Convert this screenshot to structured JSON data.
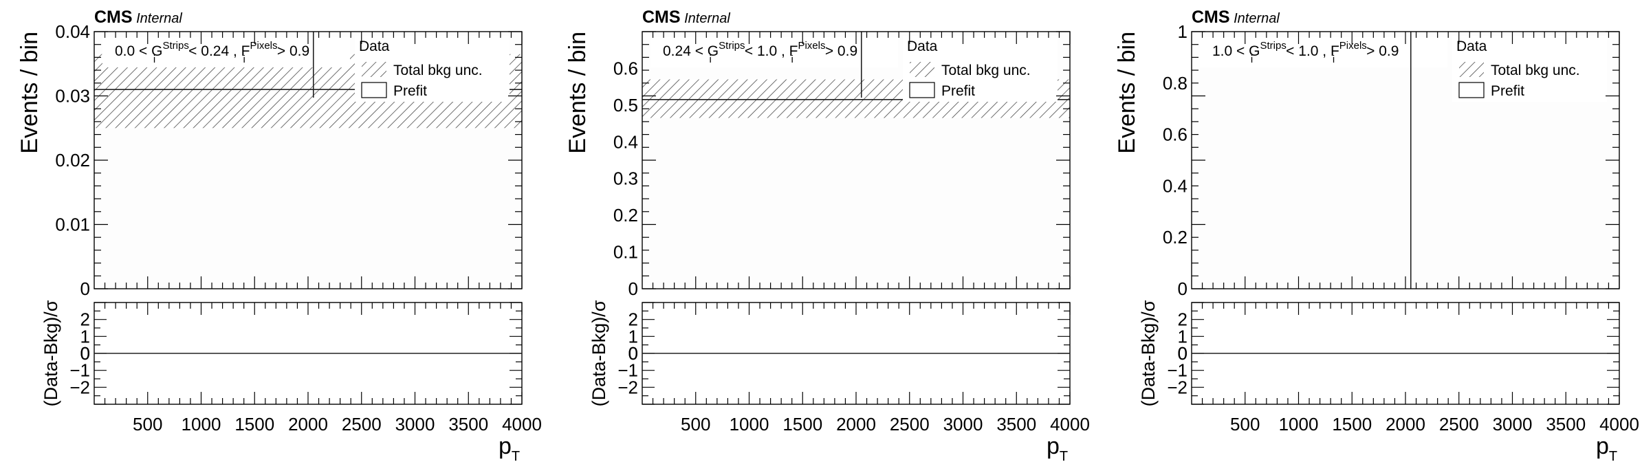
{
  "chart_data": [
    {
      "type": "bar",
      "panel": "left",
      "experiment_label": "CMS",
      "status_label": "Internal",
      "region": {
        "lower": "0.0",
        "op1": "< G",
        "g_sub": "i",
        "g_sup": "Strips",
        "upper_text": "< 0.24 , F",
        "f_sub": "i",
        "f_sup": "Pixels",
        "tail": "> 0.9"
      },
      "ylabel": "Events / bin",
      "xlabel_main": "p",
      "xlabel_sub": "T",
      "ratio_ylabel": "(Data-Bkg)/σ",
      "xlim": [
        0,
        4000
      ],
      "ylim": [
        0,
        0.04
      ],
      "yticks": [
        "0",
        "0.01",
        "0.02",
        "0.03",
        "0.04"
      ],
      "xticks": [
        "500",
        "1000",
        "1500",
        "2000",
        "2500",
        "3000",
        "3500",
        "4000"
      ],
      "ratio_ylim": [
        -3,
        3
      ],
      "ratio_yticks": [
        "−2",
        "−1",
        "0",
        "1",
        "2"
      ],
      "bins": [
        [
          0,
          4000
        ]
      ],
      "prefit": [
        0.031
      ],
      "bkg_unc_low": [
        0.025
      ],
      "bkg_unc_high": [
        0.0365
      ],
      "data_marker_x": 2050,
      "legend": {
        "data": "Data",
        "unc": "Total bkg unc.",
        "prefit": "Prefit"
      }
    },
    {
      "type": "bar",
      "panel": "middle",
      "experiment_label": "CMS",
      "status_label": "Internal",
      "region": {
        "lower": "0.24",
        "op1": "< G",
        "g_sub": "i",
        "g_sup": "Strips",
        "upper_text": "< 1.0 , F",
        "f_sub": "i",
        "f_sup": "Pixels",
        "tail": "> 0.9"
      },
      "ylabel": "Events / bin",
      "xlabel_main": "p",
      "xlabel_sub": "T",
      "ratio_ylabel": "(Data-Bkg)/σ",
      "xlim": [
        0,
        4000
      ],
      "ylim": [
        0,
        0.7
      ],
      "yticks": [
        "0",
        "0.1",
        "0.2",
        "0.3",
        "0.4",
        "0.5",
        "0.6"
      ],
      "xticks": [
        "500",
        "1000",
        "1500",
        "2000",
        "2500",
        "3000",
        "3500",
        "4000"
      ],
      "ratio_ylim": [
        -3,
        3
      ],
      "ratio_yticks": [
        "−2",
        "−1",
        "0",
        "1",
        "2"
      ],
      "bins": [
        [
          0,
          4000
        ]
      ],
      "prefit": [
        0.515
      ],
      "bkg_unc_low": [
        0.465
      ],
      "bkg_unc_high": [
        0.57
      ],
      "data_marker_x": 2050,
      "legend": {
        "data": "Data",
        "unc": "Total bkg unc.",
        "prefit": "Prefit"
      }
    },
    {
      "type": "bar",
      "panel": "right",
      "experiment_label": "CMS",
      "status_label": "Internal",
      "region": {
        "lower": "1.0",
        "op1": "< G",
        "g_sub": "i",
        "g_sup": "Strips",
        "upper_text": "< 1.0 , F",
        "f_sub": "i",
        "f_sup": "Pixels",
        "tail": "> 0.9"
      },
      "ylabel": "Events / bin",
      "xlabel_main": "p",
      "xlabel_sub": "T",
      "ratio_ylabel": "(Data-Bkg)/σ",
      "xlim": [
        0,
        4000
      ],
      "ylim": [
        0,
        1
      ],
      "yticks": [
        "0",
        "0.2",
        "0.4",
        "0.6",
        "0.8",
        "1"
      ],
      "xticks": [
        "500",
        "1000",
        "1500",
        "2000",
        "2500",
        "3000",
        "3500",
        "4000"
      ],
      "ratio_ylim": [
        -3,
        3
      ],
      "ratio_yticks": [
        "−2",
        "−1",
        "0",
        "1",
        "2"
      ],
      "bins": [],
      "prefit": [],
      "bkg_unc_low": [],
      "bkg_unc_high": [],
      "data_marker_x": 2050,
      "legend": {
        "data": "Data",
        "unc": "Total bkg unc.",
        "prefit": "Prefit"
      }
    }
  ]
}
